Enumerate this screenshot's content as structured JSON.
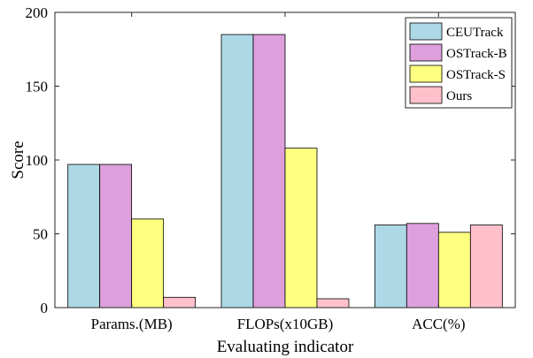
{
  "chart_data": {
    "type": "bar",
    "categories": [
      "Params.(MB)",
      "FLOPs(x10GB)",
      "ACC(%)"
    ],
    "series": [
      {
        "name": "CEUTrack",
        "color": "#ADD8E6",
        "values": [
          97,
          185,
          56
        ]
      },
      {
        "name": "OSTrack-B",
        "color": "#DDA0DD",
        "values": [
          97,
          185,
          57
        ]
      },
      {
        "name": "OSTrack-S",
        "color": "#FFFF80",
        "values": [
          60,
          108,
          51
        ]
      },
      {
        "name": "Ours",
        "color": "#FFC0CB",
        "values": [
          7,
          6,
          56
        ]
      }
    ],
    "xlabel": "Evaluating indicator",
    "ylabel": "Score",
    "ylim": [
      0,
      200
    ],
    "yticks": [
      0,
      50,
      100,
      150,
      200
    ],
    "legend_position": "top-right",
    "grid": false
  }
}
